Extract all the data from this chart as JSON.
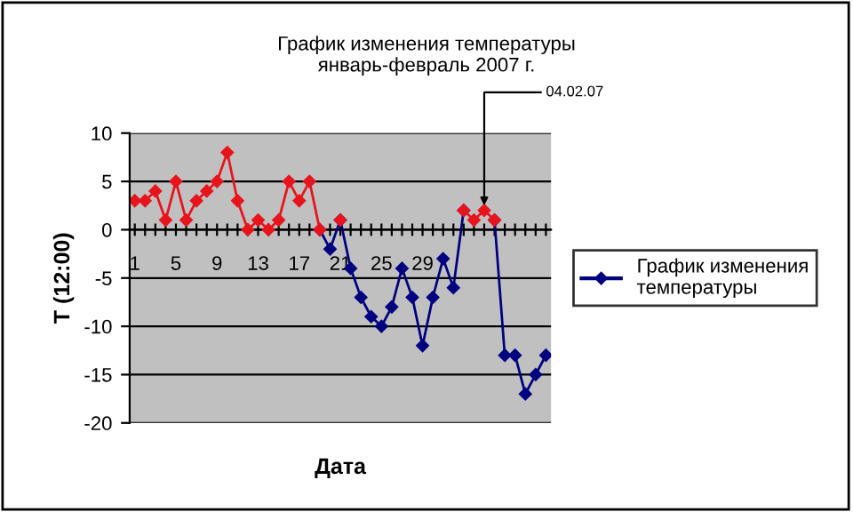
{
  "chart_data": {
    "type": "line",
    "title": "График изменения температуры\nянварь-февраль 2007 г.",
    "xlabel": "Дата",
    "ylabel": "T (12:00)",
    "x": [
      1,
      2,
      3,
      4,
      5,
      6,
      7,
      8,
      9,
      10,
      11,
      12,
      13,
      14,
      15,
      16,
      17,
      18,
      19,
      20,
      21,
      22,
      23,
      24,
      25,
      26,
      27,
      28,
      29,
      30,
      31,
      32,
      33,
      34,
      35,
      36,
      37,
      38,
      39,
      40,
      41
    ],
    "series": [
      {
        "name": "График изменения температуры",
        "color": "#000080",
        "values": [
          null,
          null,
          null,
          null,
          null,
          null,
          null,
          null,
          null,
          null,
          null,
          null,
          null,
          null,
          null,
          null,
          null,
          null,
          0,
          -2,
          1,
          -4,
          -7,
          -9,
          -10,
          -8,
          -4,
          -7,
          -12,
          -7,
          -3,
          -6,
          2,
          null,
          null,
          1,
          -13,
          -13,
          -17,
          -15,
          -13
        ]
      },
      {
        "color": "#e8141c",
        "values": [
          3,
          3,
          4,
          1,
          5,
          1,
          3,
          4,
          5,
          8,
          3,
          0,
          1,
          0,
          1,
          5,
          3,
          5,
          0,
          null,
          1,
          null,
          null,
          null,
          null,
          null,
          null,
          null,
          null,
          null,
          null,
          null,
          2,
          1,
          2,
          1,
          null,
          null,
          null,
          null,
          null
        ]
      }
    ],
    "xlim": [
      0.5,
      41.5
    ],
    "xticks": [
      1,
      {
        "value": 2,
        "label": null
      },
      {
        "value": 3,
        "label": null
      },
      {
        "value": 4,
        "label": null
      },
      5,
      {
        "value": 6,
        "label": null
      },
      {
        "value": 7,
        "label": null
      },
      {
        "value": 8,
        "label": null
      },
      9,
      {
        "value": 10,
        "label": null
      },
      {
        "value": 11,
        "label": null
      },
      {
        "value": 12,
        "label": null
      },
      13,
      {
        "value": 14,
        "label": null
      },
      {
        "value": 15,
        "label": null
      },
      {
        "value": 16,
        "label": null
      },
      17,
      {
        "value": 18,
        "label": null
      },
      {
        "value": 19,
        "label": null
      },
      {
        "value": 20,
        "label": null
      },
      21,
      {
        "value": 22,
        "label": null
      },
      {
        "value": 23,
        "label": null
      },
      {
        "value": 24,
        "label": null
      },
      25,
      {
        "value": 26,
        "label": null
      },
      {
        "value": 27,
        "label": null
      },
      {
        "value": 28,
        "label": null
      },
      29,
      {
        "value": 30,
        "label": null
      },
      {
        "value": 31,
        "label": null
      },
      {
        "value": 32,
        "label": null
      },
      {
        "value": 33,
        "label": null
      },
      {
        "value": 34,
        "label": null
      },
      {
        "value": 35,
        "label": null
      },
      {
        "value": 36,
        "label": null
      },
      {
        "value": 37,
        "label": null
      },
      {
        "value": 38,
        "label": null
      },
      {
        "value": 39,
        "label": null
      },
      {
        "value": 40,
        "label": null
      },
      {
        "value": 41,
        "label": null
      }
    ],
    "ylim": [
      -20,
      10
    ],
    "yticks": [
      -20,
      -15,
      -10,
      -5,
      0,
      5,
      10
    ],
    "grid": "y",
    "legend": "right",
    "marker": "diamond",
    "line_style": "solid",
    "annotations": [
      {
        "text": "04.02.07",
        "x": 35,
        "y": 2
      }
    ]
  }
}
